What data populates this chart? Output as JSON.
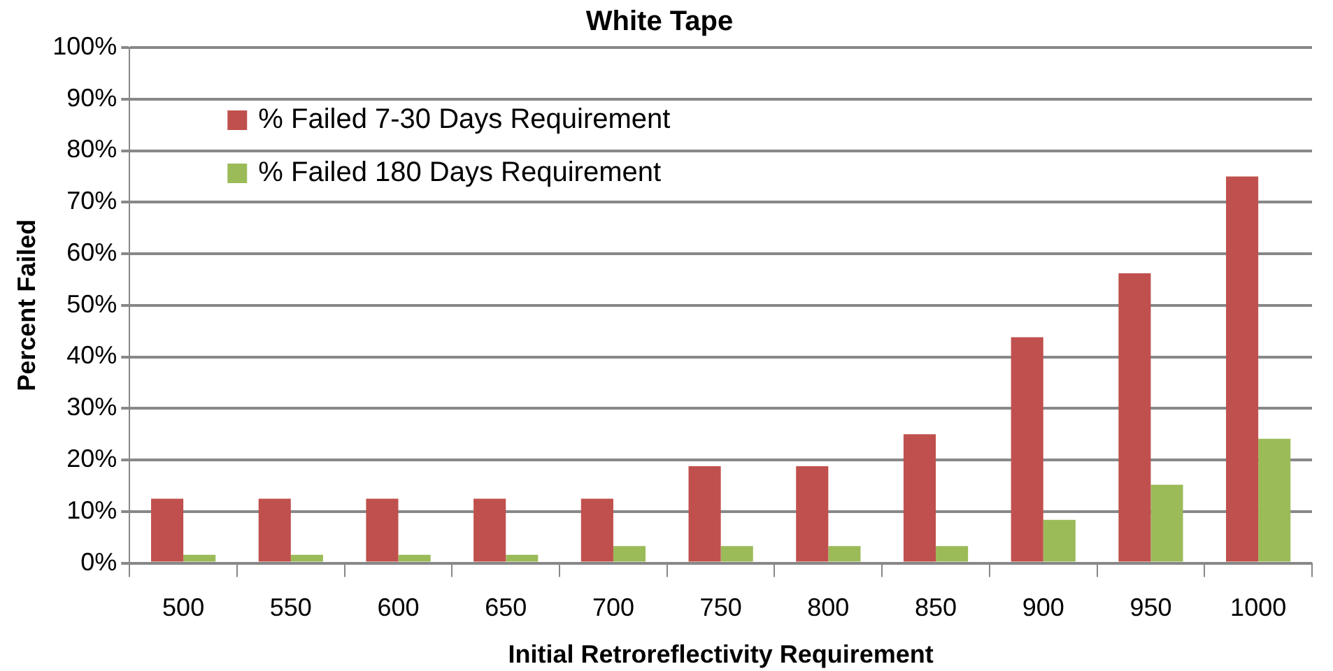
{
  "chart_data": {
    "type": "bar",
    "title": "White Tape",
    "xlabel": "Initial Retroreflectivity Requirement",
    "ylabel": "Percent Failed",
    "categories": [
      "500",
      "550",
      "600",
      "650",
      "700",
      "750",
      "800",
      "850",
      "900",
      "950",
      "1000"
    ],
    "series": [
      {
        "name": "% Failed 7-30 Days Requirement",
        "color": "#c0504d",
        "values": [
          12.5,
          12.5,
          12.5,
          12.5,
          12.5,
          18.8,
          18.8,
          25,
          43.8,
          56.2,
          75
        ]
      },
      {
        "name": "% Failed 180 Days Requirement",
        "color": "#9bbb59",
        "values": [
          1.6,
          1.6,
          1.6,
          1.6,
          3.3,
          3.3,
          3.3,
          3.3,
          8.4,
          15.2,
          24.1
        ]
      }
    ],
    "ylim": [
      0,
      100
    ],
    "yticks": [
      {
        "value": 0,
        "label": "0%"
      },
      {
        "value": 10,
        "label": "10%"
      },
      {
        "value": 20,
        "label": "20%"
      },
      {
        "value": 30,
        "label": "30%"
      },
      {
        "value": 40,
        "label": "40%"
      },
      {
        "value": 50,
        "label": "50%"
      },
      {
        "value": 60,
        "label": "60%"
      },
      {
        "value": 70,
        "label": "70%"
      },
      {
        "value": 80,
        "label": "80%"
      },
      {
        "value": 90,
        "label": "90%"
      },
      {
        "value": 100,
        "label": "100%"
      }
    ],
    "grid": "y",
    "legend": "top left"
  }
}
